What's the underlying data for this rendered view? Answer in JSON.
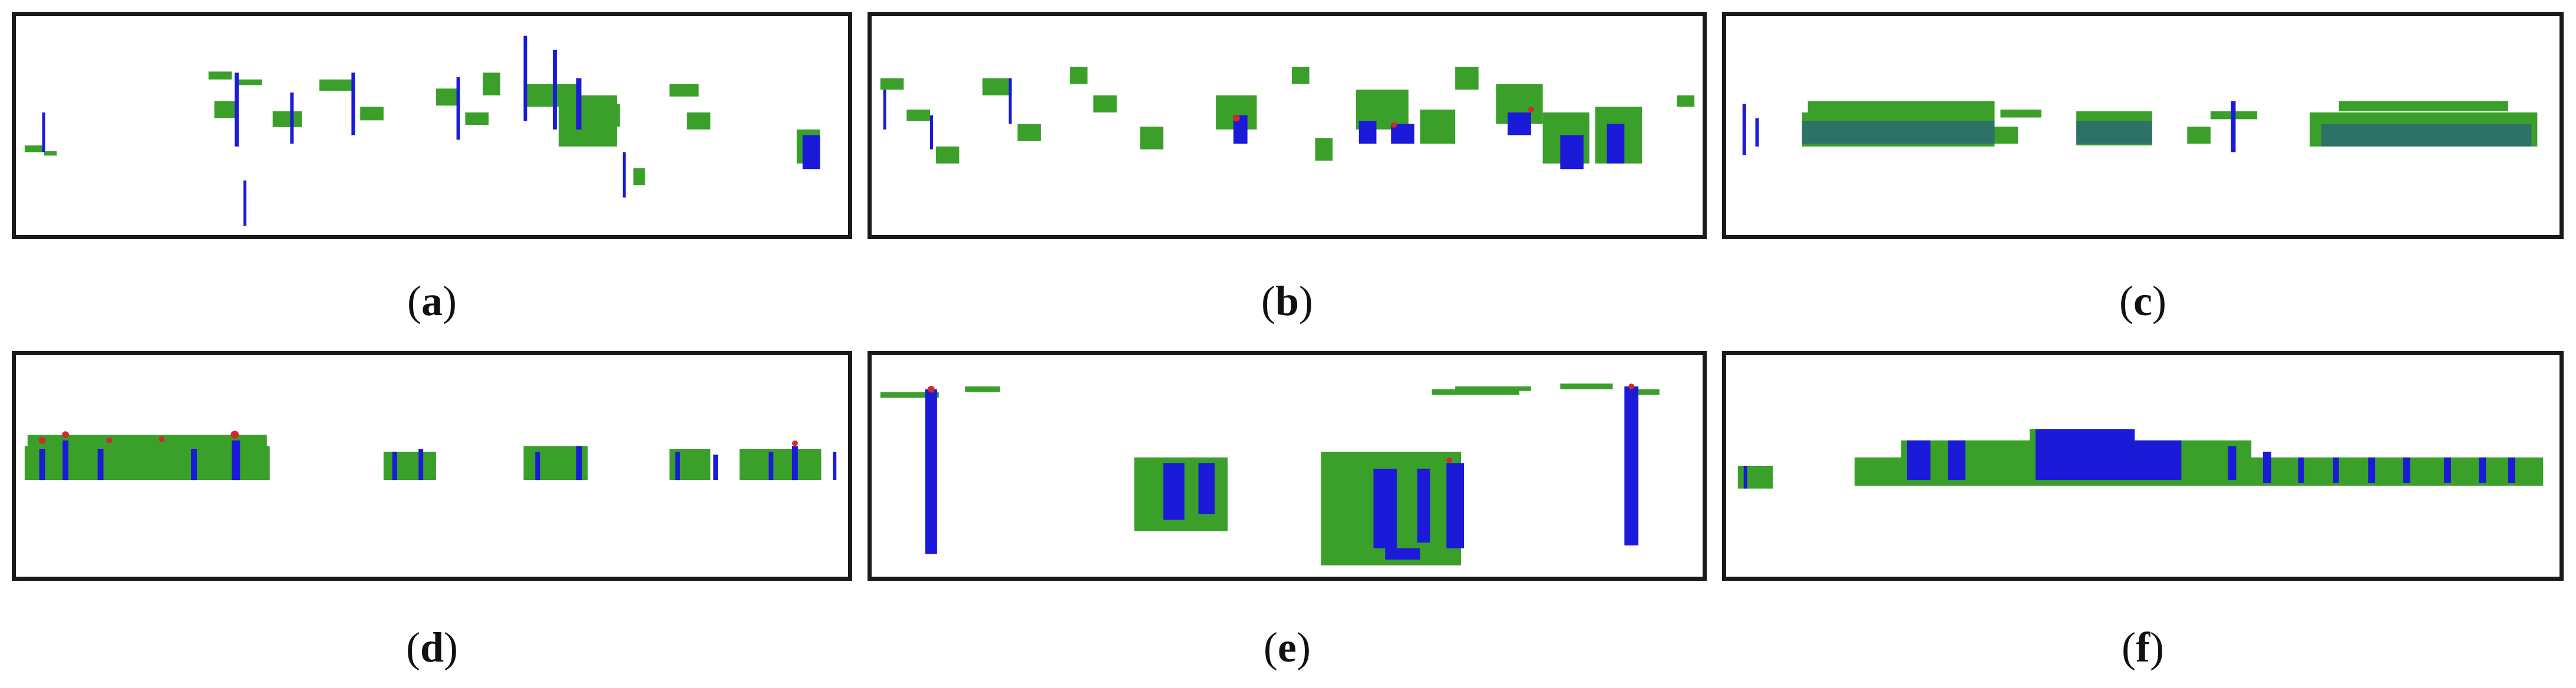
{
  "colors": {
    "vegetation": "#3aa02a",
    "pole": "#1a1ad8",
    "tip": "#d02a2a",
    "frame": "#1a1a1a"
  },
  "panels": [
    {
      "id": "a",
      "label": "a"
    },
    {
      "id": "b",
      "label": "b"
    },
    {
      "id": "c",
      "label": "c"
    },
    {
      "id": "d",
      "label": "d"
    },
    {
      "id": "e",
      "label": "e"
    },
    {
      "id": "f",
      "label": "f"
    }
  ]
}
